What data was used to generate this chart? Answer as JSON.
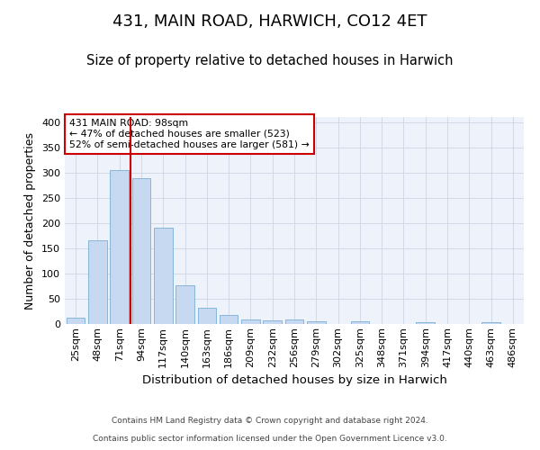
{
  "title": "431, MAIN ROAD, HARWICH, CO12 4ET",
  "subtitle": "Size of property relative to detached houses in Harwich",
  "xlabel": "Distribution of detached houses by size in Harwich",
  "ylabel": "Number of detached properties",
  "categories": [
    "25sqm",
    "48sqm",
    "71sqm",
    "94sqm",
    "117sqm",
    "140sqm",
    "163sqm",
    "186sqm",
    "209sqm",
    "232sqm",
    "256sqm",
    "279sqm",
    "302sqm",
    "325sqm",
    "348sqm",
    "371sqm",
    "394sqm",
    "417sqm",
    "440sqm",
    "463sqm",
    "486sqm"
  ],
  "values": [
    13,
    166,
    305,
    289,
    191,
    77,
    32,
    17,
    9,
    7,
    9,
    5,
    0,
    5,
    0,
    0,
    3,
    0,
    0,
    3,
    0
  ],
  "bar_color": "#c6d9f0",
  "bar_edge_color": "#7bafd4",
  "grid_color": "#c8cfe0",
  "background_color": "#eef2fa",
  "vline_color": "#cc0000",
  "vline_x": 2.5,
  "annotation_text": "431 MAIN ROAD: 98sqm\n← 47% of detached houses are smaller (523)\n52% of semi-detached houses are larger (581) →",
  "annotation_box_edge": "#cc0000",
  "footer_line1": "Contains HM Land Registry data © Crown copyright and database right 2024.",
  "footer_line2": "Contains public sector information licensed under the Open Government Licence v3.0.",
  "ylim": [
    0,
    410
  ],
  "title_fontsize": 13,
  "subtitle_fontsize": 10.5,
  "xlabel_fontsize": 9.5,
  "ylabel_fontsize": 9,
  "tick_fontsize": 8,
  "footer_fontsize": 6.5
}
